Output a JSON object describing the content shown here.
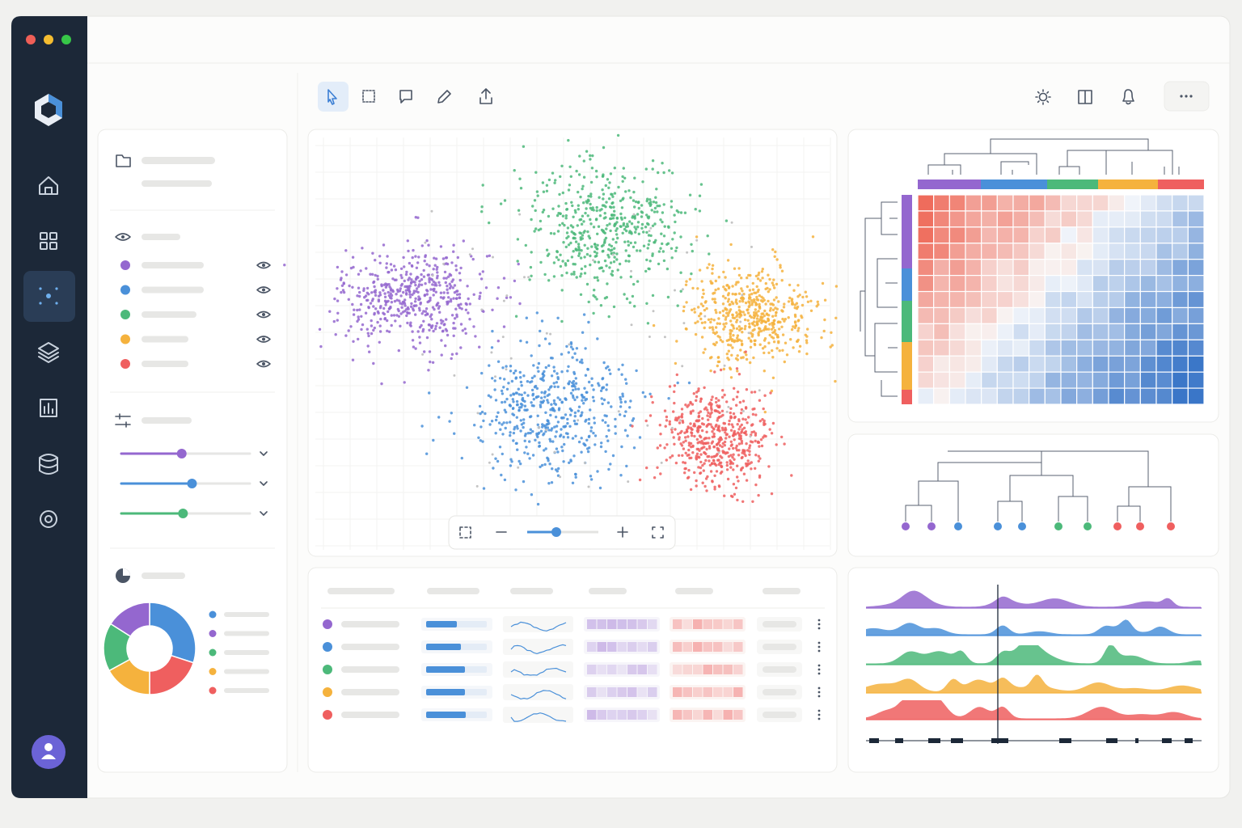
{
  "clusters": [
    {
      "color": "#9467cf"
    },
    {
      "color": "#4a90d9"
    },
    {
      "color": "#4cb97a"
    },
    {
      "color": "#f5b23d"
    },
    {
      "color": "#ef5f5f"
    }
  ],
  "sliders": [
    {
      "color": "#9467cf",
      "value": 47
    },
    {
      "color": "#4a90d9",
      "value": 55
    },
    {
      "color": "#4cb97a",
      "value": 48
    }
  ],
  "donut": {
    "values": [
      30,
      20,
      17,
      17,
      16
    ],
    "colors": [
      "#4a90d9",
      "#ef5f5f",
      "#f5b23d",
      "#4cb97a",
      "#9467cf"
    ]
  }
}
